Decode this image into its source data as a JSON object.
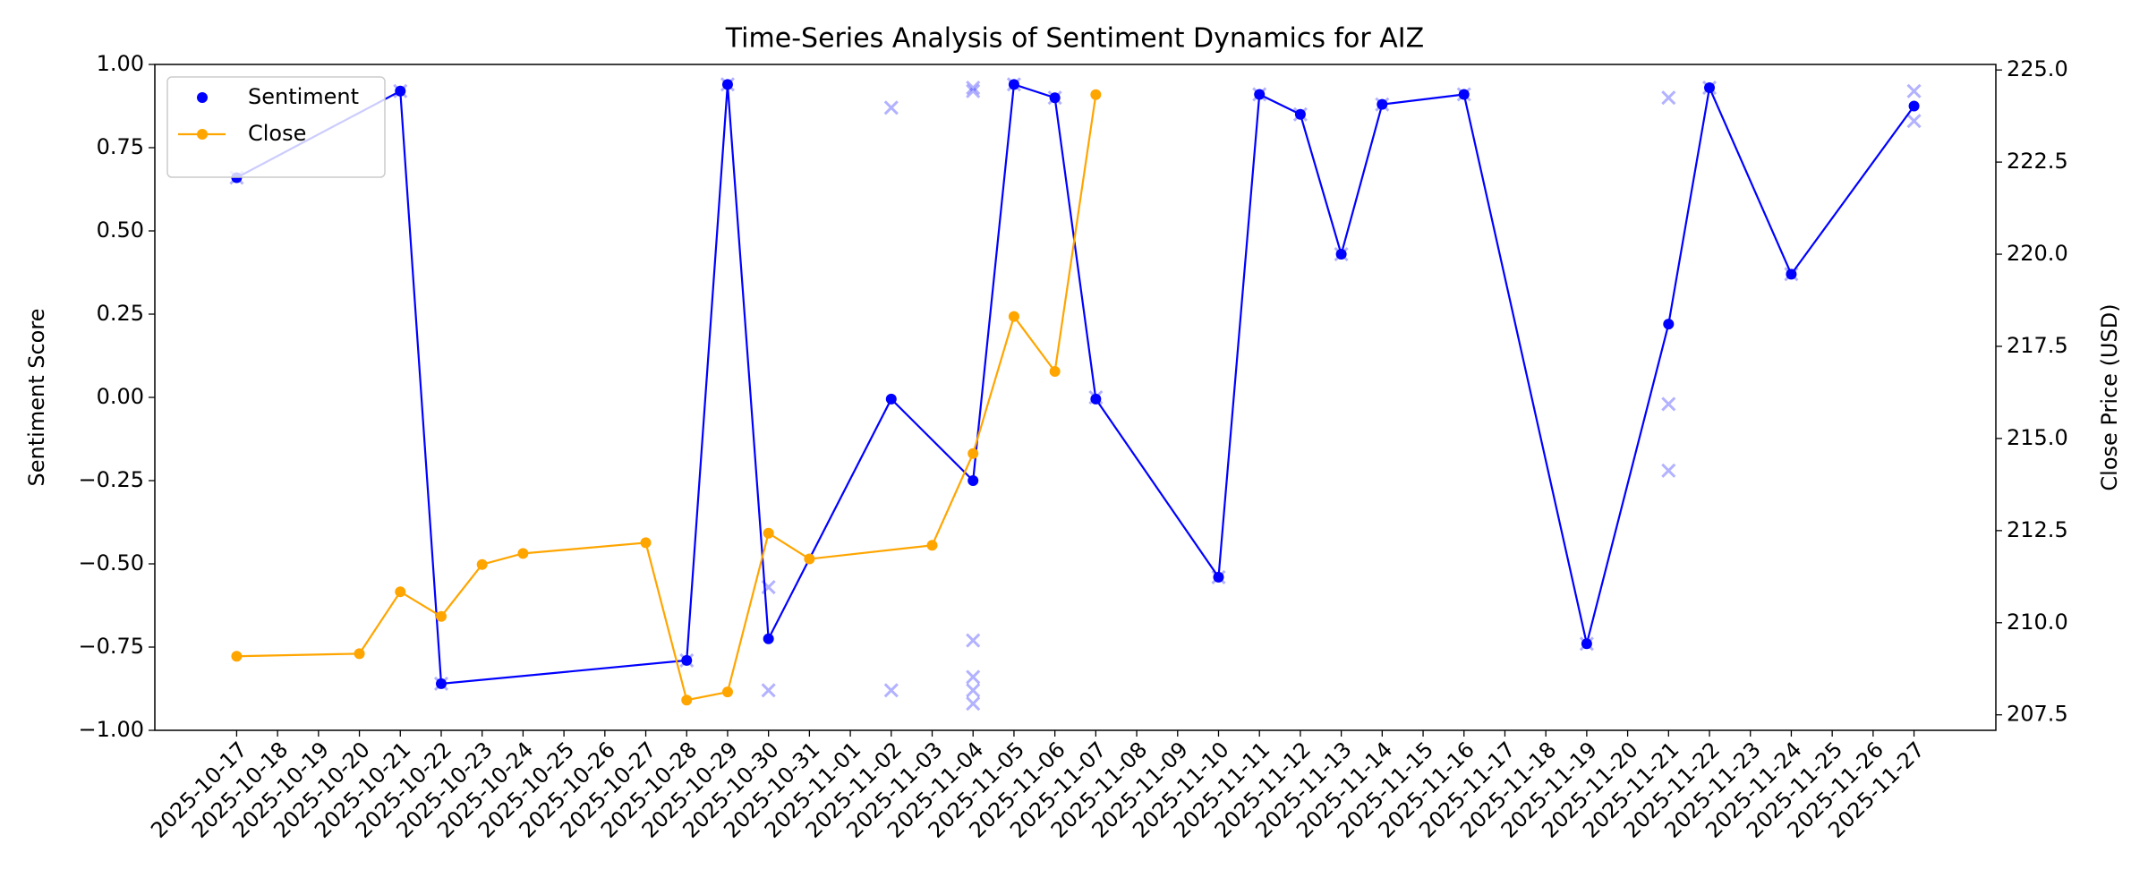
{
  "chart_data": {
    "type": "line",
    "title": "Time-Series Analysis of Sentiment Dynamics for AIZ",
    "ylabel": "Sentiment Score",
    "y2label": "Close Price (USD)",
    "xlim": [
      "2025-10-15",
      "2025-11-29"
    ],
    "xticks": [
      "2025-10-17",
      "2025-10-18",
      "2025-10-19",
      "2025-10-20",
      "2025-10-21",
      "2025-10-22",
      "2025-10-23",
      "2025-10-24",
      "2025-10-25",
      "2025-10-26",
      "2025-10-27",
      "2025-10-28",
      "2025-10-29",
      "2025-10-30",
      "2025-10-31",
      "2025-11-01",
      "2025-11-02",
      "2025-11-03",
      "2025-11-04",
      "2025-11-05",
      "2025-11-06",
      "2025-11-07",
      "2025-11-08",
      "2025-11-09",
      "2025-11-10",
      "2025-11-11",
      "2025-11-12",
      "2025-11-13",
      "2025-11-14",
      "2025-11-15",
      "2025-11-16",
      "2025-11-17",
      "2025-11-18",
      "2025-11-19",
      "2025-11-20",
      "2025-11-21",
      "2025-11-22",
      "2025-11-23",
      "2025-11-24",
      "2025-11-25",
      "2025-11-26",
      "2025-11-27"
    ],
    "ylim": [
      -1,
      1
    ],
    "yticks": [
      {
        "value": -1,
        "label": "−1.00"
      },
      {
        "value": -0.75,
        "label": "−0.75"
      },
      {
        "value": -0.5,
        "label": "−0.50"
      },
      {
        "value": -0.25,
        "label": "−0.25"
      },
      {
        "value": 0,
        "label": "0.00"
      },
      {
        "value": 0.25,
        "label": "0.25"
      },
      {
        "value": 0.5,
        "label": "0.50"
      },
      {
        "value": 0.75,
        "label": "0.75"
      },
      {
        "value": 1,
        "label": "1.00"
      }
    ],
    "y2lim": [
      207.08,
      225.15
    ],
    "y2ticks": [
      207.5,
      {
        "value": 210,
        "label": "210.0"
      },
      212.5,
      {
        "value": 215,
        "label": "215.0"
      },
      217.5,
      {
        "value": 220,
        "label": "220.0"
      },
      222.5,
      {
        "value": 225,
        "label": "225.0"
      }
    ],
    "legend": "upper left",
    "series": [
      {
        "name": "Sentiment",
        "type": "line",
        "legend_marker": "dot",
        "color": "#0000ff",
        "x": [
          "2025-10-17",
          "2025-10-21",
          "2025-10-22",
          "2025-10-28",
          "2025-10-29",
          "2025-10-30",
          "2025-11-02",
          "2025-11-04",
          "2025-11-05",
          "2025-11-06",
          "2025-11-07",
          "2025-11-10",
          "2025-11-11",
          "2025-11-12",
          "2025-11-13",
          "2025-11-14",
          "2025-11-16",
          "2025-11-19",
          "2025-11-21",
          "2025-11-22",
          "2025-11-24",
          "2025-11-27"
        ],
        "values": [
          0.66,
          0.92,
          -0.86,
          -0.79,
          0.94,
          -0.725,
          -0.005,
          -0.25,
          0.94,
          0.9,
          -0.005,
          -0.54,
          0.91,
          0.85,
          0.43,
          0.88,
          0.91,
          -0.74,
          0.22,
          0.93,
          0.37,
          0.875
        ]
      },
      {
        "name": "Close",
        "type": "line",
        "legend_marker": "line",
        "color": "#ffa500",
        "axis": "y2",
        "x": [
          "2025-10-17",
          "2025-10-20",
          "2025-10-21",
          "2025-10-22",
          "2025-10-23",
          "2025-10-24",
          "2025-10-27",
          "2025-10-28",
          "2025-10-29",
          "2025-10-30",
          "2025-10-31",
          "2025-11-03",
          "2025-11-04",
          "2025-11-05",
          "2025-11-06",
          "2025-11-07"
        ],
        "values": [
          209.09,
          209.16,
          210.84,
          210.17,
          211.58,
          211.88,
          212.17,
          207.9,
          208.12,
          212.43,
          211.73,
          212.1,
          214.59,
          218.31,
          216.82,
          224.33
        ]
      },
      {
        "type": "scatter",
        "color": "#0000ff",
        "alpha": 0.3,
        "x": [
          "2025-10-17",
          "2025-10-21",
          "2025-10-22",
          "2025-10-28",
          "2025-10-29",
          "2025-10-30",
          "2025-10-30",
          "2025-11-02",
          "2025-11-02",
          "2025-11-04",
          "2025-11-04",
          "2025-11-04",
          "2025-11-04",
          "2025-11-04",
          "2025-11-04",
          "2025-11-05",
          "2025-11-06",
          "2025-11-07",
          "2025-11-10",
          "2025-11-11",
          "2025-11-12",
          "2025-11-13",
          "2025-11-14",
          "2025-11-16",
          "2025-11-19",
          "2025-11-21",
          "2025-11-21",
          "2025-11-21",
          "2025-11-22",
          "2025-11-24",
          "2025-11-27",
          "2025-11-27"
        ],
        "values": [
          0.66,
          0.92,
          -0.86,
          -0.79,
          0.94,
          -0.57,
          -0.88,
          0.87,
          -0.88,
          0.93,
          0.92,
          -0.73,
          -0.84,
          -0.88,
          -0.92,
          0.94,
          0.9,
          0.0,
          -0.54,
          0.91,
          0.85,
          0.43,
          0.88,
          0.91,
          -0.74,
          0.9,
          -0.02,
          -0.22,
          0.93,
          0.37,
          0.92,
          0.83
        ]
      }
    ]
  }
}
